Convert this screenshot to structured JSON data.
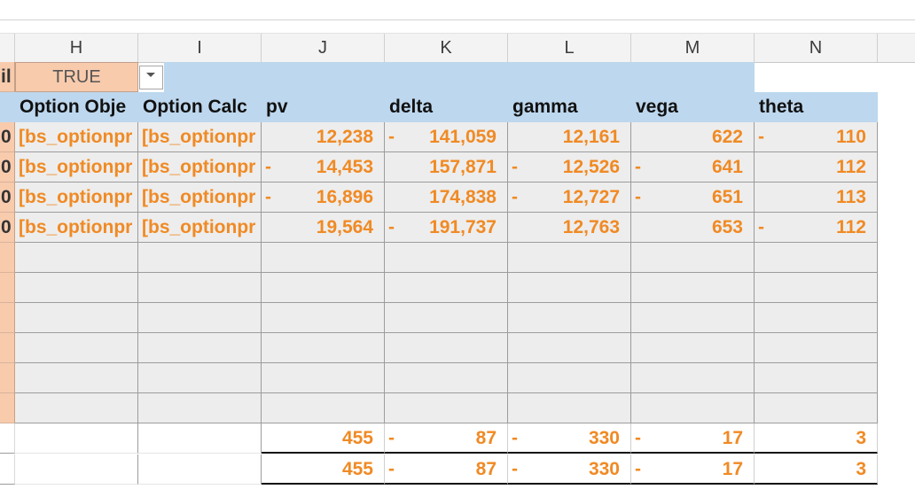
{
  "columns": [
    "H",
    "I",
    "J",
    "K",
    "L",
    "M",
    "N"
  ],
  "filter": {
    "left_label": "il",
    "value": "TRUE"
  },
  "headers": [
    "Option Obje",
    "Option Calc",
    "pv",
    "delta",
    "gamma",
    "vega",
    "theta"
  ],
  "left_stub_values": [
    "0",
    "0",
    "0",
    "0"
  ],
  "rows": [
    {
      "obj": "[bs_optionpr",
      "calc": "[bs_optionpr",
      "pv": "12,238",
      "pv_neg": false,
      "delta": "141,059",
      "delta_neg": true,
      "gamma": "12,161",
      "gamma_neg": false,
      "vega": "622",
      "vega_neg": false,
      "theta": "110",
      "theta_neg": true
    },
    {
      "obj": "[bs_optionpr",
      "calc": "[bs_optionpr",
      "pv": "14,453",
      "pv_neg": true,
      "delta": "157,871",
      "delta_neg": false,
      "gamma": "12,526",
      "gamma_neg": true,
      "vega": "641",
      "vega_neg": true,
      "theta": "112",
      "theta_neg": false
    },
    {
      "obj": "[bs_optionpr",
      "calc": "[bs_optionpr",
      "pv": "16,896",
      "pv_neg": true,
      "delta": "174,838",
      "delta_neg": false,
      "gamma": "12,727",
      "gamma_neg": true,
      "vega": "651",
      "vega_neg": true,
      "theta": "113",
      "theta_neg": false
    },
    {
      "obj": "[bs_optionpr",
      "calc": "[bs_optionpr",
      "pv": "19,564",
      "pv_neg": false,
      "delta": "191,737",
      "delta_neg": true,
      "gamma": "12,763",
      "gamma_neg": false,
      "vega": "653",
      "vega_neg": false,
      "theta": "112",
      "theta_neg": true
    }
  ],
  "totals": [
    {
      "pv": "455",
      "delta": "87",
      "delta_neg": true,
      "gamma": "330",
      "gamma_neg": true,
      "vega": "17",
      "vega_neg": true,
      "theta": "3"
    },
    {
      "pv": "455",
      "delta": "87",
      "delta_neg": true,
      "gamma": "330",
      "gamma_neg": true,
      "vega": "17",
      "vega_neg": true,
      "theta": "3"
    }
  ],
  "dash": "-",
  "colors": {
    "header_fill": "#bdd7ee",
    "data_fill": "#ededed",
    "accent": "#f08a24",
    "peach": "#f8cbad"
  }
}
